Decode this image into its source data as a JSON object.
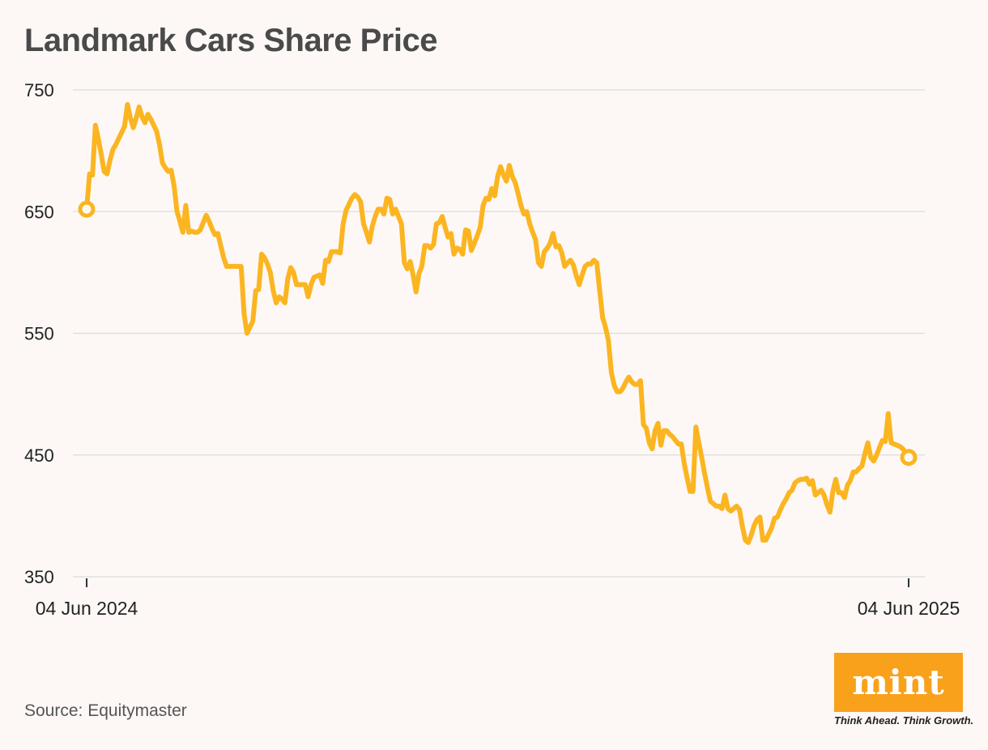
{
  "header": {
    "title": "Landmark Cars Share Price"
  },
  "footer": {
    "source": "Source: Equitymaster"
  },
  "logo": {
    "brand": "mint",
    "tagline": "Think Ahead. Think Growth.",
    "color": "#f9a11b"
  },
  "colors": {
    "line": "#fbb521",
    "grid": "#dcdcdc",
    "axis_text": "#222222"
  },
  "chart_data": {
    "type": "line",
    "title": "Landmark Cars Share Price",
    "xlabel": "",
    "ylabel": "",
    "ylim": [
      350,
      750
    ],
    "yticks": [
      350,
      450,
      550,
      650,
      750
    ],
    "xtick_labels": [
      "04 Jun 2024",
      "04 Jun 2025"
    ],
    "x_start": "04 Jun 2024",
    "x_end": "04 Jun 2025",
    "grid": true,
    "markers": [
      "start",
      "end"
    ],
    "series": [
      {
        "values": [
          652,
          681,
          680,
          721,
          710,
          697,
          683,
          681,
          692,
          701,
          705,
          710,
          715,
          720,
          738,
          727,
          719,
          727,
          736,
          728,
          723,
          730,
          726,
          721,
          716,
          705,
          690,
          686,
          683,
          684,
          671,
          650,
          642,
          633,
          655,
          633,
          634,
          633,
          633,
          635,
          641,
          647,
          642,
          636,
          631,
          632,
          622,
          612,
          605,
          605,
          605,
          605,
          605,
          605,
          566,
          550,
          555,
          560,
          585,
          586,
          615,
          612,
          607,
          600,
          585,
          575,
          580,
          578,
          575,
          595,
          604,
          600,
          590,
          590,
          590,
          590,
          580,
          590,
          596,
          597,
          598,
          591,
          610,
          609,
          617,
          617,
          617,
          616,
          640,
          651,
          656,
          661,
          664,
          662,
          658,
          640,
          633,
          625,
          638,
          646,
          652,
          652,
          648,
          661,
          660,
          648,
          652,
          646,
          640,
          608,
          603,
          609,
          598,
          584,
          599,
          605,
          622,
          622,
          620,
          623,
          640,
          641,
          646,
          637,
          629,
          632,
          615,
          620,
          619,
          615,
          635,
          634,
          618,
          624,
          630,
          637,
          655,
          661,
          660,
          669,
          663,
          679,
          687,
          680,
          675,
          688,
          679,
          674,
          665,
          655,
          648,
          650,
          640,
          633,
          627,
          608,
          605,
          617,
          620,
          624,
          632,
          621,
          622,
          616,
          605,
          608,
          610,
          606,
          597,
          590,
          598,
          605,
          607,
          607,
          610,
          608,
          585,
          563,
          555,
          544,
          518,
          507,
          502,
          502,
          505,
          510,
          514,
          510,
          508,
          508,
          511,
          475,
          472,
          460,
          455,
          470,
          476,
          458,
          470,
          470,
          467,
          465,
          462,
          459,
          459,
          443,
          431,
          420,
          420,
          473,
          460,
          448,
          435,
          423,
          412,
          410,
          408,
          408,
          406,
          417,
          406,
          404,
          406,
          408,
          405,
          391,
          380,
          378,
          384,
          392,
          397,
          399,
          380,
          380,
          385,
          390,
          398,
          399,
          405,
          410,
          414,
          419,
          421,
          427,
          429,
          430,
          430,
          431,
          426,
          429,
          417,
          419,
          421,
          417,
          409,
          403,
          420,
          430,
          419,
          419,
          415,
          425,
          429,
          436,
          436,
          439,
          441,
          451,
          460,
          448,
          445,
          450,
          456,
          462,
          461,
          484,
          460,
          459,
          458,
          457,
          455,
          452,
          448
        ]
      }
    ]
  }
}
